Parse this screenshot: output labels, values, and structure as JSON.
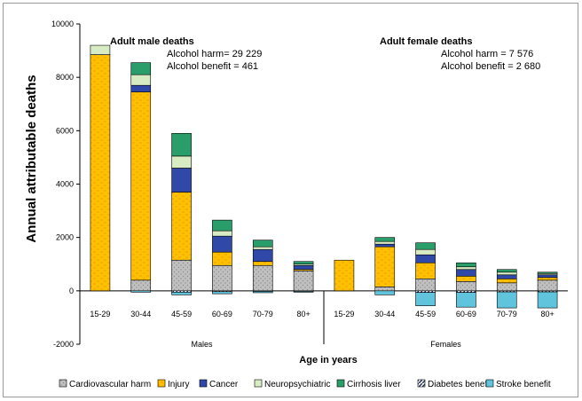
{
  "chart_data": {
    "type": "bar",
    "stacked": true,
    "ylabel": "Annual attributable deaths",
    "xlabel": "Age in years",
    "ylim": [
      -2000,
      10000
    ],
    "yticks": [
      -2000,
      0,
      2000,
      4000,
      6000,
      8000,
      10000
    ],
    "grid": false,
    "legend_position": "bottom",
    "groups": [
      {
        "name": "Males",
        "categories": [
          "15-29",
          "30-44",
          "45-59",
          "60-69",
          "70-79",
          "80+"
        ]
      },
      {
        "name": "Females",
        "categories": [
          "15-29",
          "30-44",
          "45-59",
          "60-69",
          "70-79",
          "80+"
        ]
      }
    ],
    "series": [
      {
        "name": "Cardiovascular harm",
        "color": "#c0c0c0",
        "pattern": "dots",
        "values": [
          0,
          400,
          1150,
          950,
          950,
          750,
          0,
          150,
          450,
          350,
          300,
          400
        ]
      },
      {
        "name": "Injury",
        "color": "#ffc000",
        "pattern": "dashes",
        "values": [
          8850,
          7050,
          2550,
          500,
          150,
          50,
          1150,
          1500,
          600,
          200,
          150,
          100
        ]
      },
      {
        "name": "Cancer",
        "color": "#3049a8",
        "pattern": "none",
        "values": [
          0,
          250,
          900,
          600,
          450,
          150,
          0,
          100,
          300,
          250,
          150,
          100
        ]
      },
      {
        "name": "Neuropsychiatric",
        "color": "#d8ecc4",
        "pattern": "none",
        "values": [
          350,
          400,
          450,
          200,
          100,
          50,
          0,
          100,
          200,
          100,
          100,
          50
        ]
      },
      {
        "name": "Cirrhosis liver",
        "color": "#2a9e6a",
        "pattern": "none",
        "values": [
          0,
          450,
          850,
          400,
          250,
          100,
          0,
          150,
          250,
          150,
          100,
          50
        ]
      },
      {
        "name": "Diabetes benefit",
        "color": "#20305e",
        "pattern": "hatch",
        "values": [
          0,
          0,
          -50,
          -30,
          -20,
          -20,
          0,
          0,
          -60,
          -60,
          -40,
          -40
        ]
      },
      {
        "name": "Stroke benefit",
        "color": "#5fc4dc",
        "pattern": "none",
        "values": [
          0,
          -50,
          -100,
          -80,
          -50,
          -30,
          0,
          -150,
          -500,
          -550,
          -600,
          -600
        ]
      }
    ],
    "annotations": [
      {
        "title": "Adult male deaths",
        "lines": [
          "Alcohol harm= 29 229",
          "Alcohol benefit = 461"
        ]
      },
      {
        "title": "Adult female deaths",
        "lines": [
          "Alcohol harm = 7 576",
          "Alcohol benefit = 2 680"
        ]
      }
    ]
  }
}
